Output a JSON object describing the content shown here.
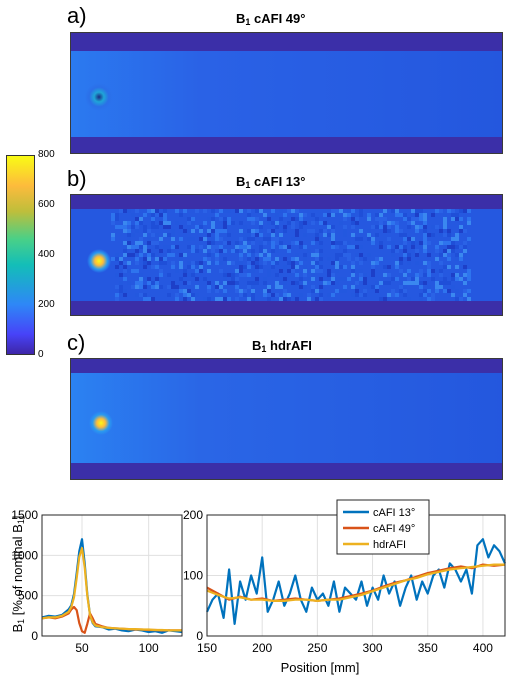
{
  "panels": [
    {
      "letter": "a)",
      "title_main": "B",
      "title_sub": "1",
      "title_rest": " cAFI 49°"
    },
    {
      "letter": "b)",
      "title_main": "B",
      "title_sub": "1",
      "title_rest": " cAFI 13°"
    },
    {
      "letter": "c)",
      "title_main": "B",
      "title_sub": "1",
      "title_rest": " hdrAFI"
    }
  ],
  "colorbar": {
    "ticks": [
      "800",
      "600",
      "400",
      "200",
      "0"
    ],
    "min": 0,
    "max": 800
  },
  "colors": {
    "cafi13": "#0072bd",
    "cafi49": "#d95319",
    "hdrafi": "#edb120",
    "map_bg": "#3e26a8",
    "map_mid": "#1a55e0"
  },
  "chart_data": [
    {
      "type": "line",
      "xlim": [
        20,
        125
      ],
      "ylim": [
        0,
        1500
      ],
      "xticks": [
        "50",
        "100"
      ],
      "yticks": [
        "0",
        "500",
        "1000",
        "1500"
      ],
      "ylabel": "B1 [% of nominal B1]",
      "ylabel_main": "B",
      "ylabel_sub1": "1",
      "ylabel_mid": " [% of nominal B",
      "ylabel_sub2": "1",
      "ylabel_end": "]",
      "grid": true,
      "series": [
        {
          "name": "cAFI 13°",
          "x": [
            20,
            25,
            30,
            35,
            40,
            42,
            44,
            46,
            48,
            50,
            52,
            54,
            56,
            58,
            60,
            65,
            70,
            75,
            80,
            85,
            90,
            95,
            100,
            105,
            110,
            115,
            120,
            125
          ],
          "y": [
            230,
            250,
            240,
            260,
            330,
            380,
            520,
            780,
            1050,
            1200,
            900,
            520,
            260,
            160,
            120,
            110,
            80,
            90,
            70,
            60,
            80,
            70,
            50,
            60,
            40,
            70,
            60,
            50
          ]
        },
        {
          "name": "cAFI 49°",
          "x": [
            20,
            25,
            30,
            35,
            40,
            42,
            44,
            46,
            48,
            50,
            52,
            54,
            56,
            58,
            60,
            65,
            70,
            75,
            80,
            85,
            90,
            95,
            100,
            105,
            110,
            115,
            120,
            125
          ],
          "y": [
            220,
            230,
            220,
            240,
            280,
            330,
            360,
            320,
            160,
            60,
            40,
            150,
            280,
            220,
            150,
            120,
            100,
            95,
            90,
            85,
            80,
            80,
            75,
            75,
            70,
            70,
            70,
            70
          ]
        },
        {
          "name": "hdrAFI",
          "x": [
            20,
            25,
            30,
            35,
            40,
            42,
            44,
            46,
            48,
            50,
            52,
            54,
            56,
            58,
            60,
            65,
            70,
            75,
            80,
            85,
            90,
            95,
            100,
            105,
            110,
            115,
            120,
            125
          ],
          "y": [
            220,
            230,
            230,
            250,
            300,
            360,
            480,
            720,
            980,
            1090,
            850,
            500,
            260,
            170,
            130,
            110,
            100,
            95,
            90,
            85,
            85,
            80,
            80,
            75,
            75,
            70,
            70,
            70
          ]
        }
      ]
    },
    {
      "type": "line",
      "xlim": [
        150,
        420
      ],
      "ylim": [
        0,
        200
      ],
      "xticks": [
        "150",
        "200",
        "250",
        "300",
        "350",
        "400"
      ],
      "yticks": [
        "0",
        "100",
        "200"
      ],
      "xlabel": "Position [mm]",
      "grid": true,
      "legend": "top-right",
      "series": [
        {
          "name": "cAFI 13°",
          "x": [
            150,
            155,
            160,
            165,
            170,
            175,
            180,
            185,
            190,
            195,
            200,
            205,
            210,
            215,
            220,
            225,
            230,
            235,
            240,
            245,
            250,
            255,
            260,
            265,
            270,
            275,
            280,
            285,
            290,
            295,
            300,
            305,
            310,
            315,
            320,
            325,
            330,
            335,
            340,
            345,
            350,
            355,
            360,
            365,
            370,
            375,
            380,
            385,
            390,
            395,
            400,
            405,
            410,
            415,
            420
          ],
          "y": [
            40,
            60,
            70,
            30,
            110,
            20,
            90,
            60,
            100,
            70,
            130,
            40,
            60,
            90,
            50,
            70,
            100,
            60,
            40,
            80,
            60,
            70,
            50,
            90,
            40,
            80,
            70,
            60,
            90,
            50,
            80,
            60,
            100,
            70,
            90,
            50,
            80,
            100,
            60,
            90,
            70,
            100,
            110,
            80,
            120,
            110,
            90,
            110,
            70,
            150,
            160,
            130,
            150,
            140,
            120
          ]
        },
        {
          "name": "cAFI 49°",
          "x": [
            150,
            160,
            170,
            180,
            190,
            200,
            210,
            220,
            230,
            240,
            250,
            260,
            270,
            280,
            290,
            300,
            310,
            320,
            330,
            340,
            350,
            360,
            370,
            380,
            390,
            400,
            410,
            420
          ],
          "y": [
            80,
            70,
            60,
            65,
            60,
            62,
            58,
            60,
            62,
            60,
            58,
            60,
            62,
            66,
            70,
            75,
            82,
            88,
            92,
            98,
            104,
            108,
            112,
            115,
            112,
            118,
            116,
            118
          ]
        },
        {
          "name": "hdrAFI",
          "x": [
            150,
            160,
            170,
            180,
            190,
            200,
            210,
            220,
            230,
            240,
            250,
            260,
            270,
            280,
            290,
            300,
            310,
            320,
            330,
            340,
            350,
            360,
            370,
            380,
            390,
            400,
            410,
            420
          ],
          "y": [
            75,
            68,
            62,
            64,
            60,
            60,
            58,
            58,
            60,
            60,
            58,
            60,
            60,
            64,
            68,
            74,
            80,
            86,
            92,
            96,
            102,
            106,
            110,
            112,
            114,
            116,
            118,
            118
          ]
        }
      ]
    }
  ]
}
